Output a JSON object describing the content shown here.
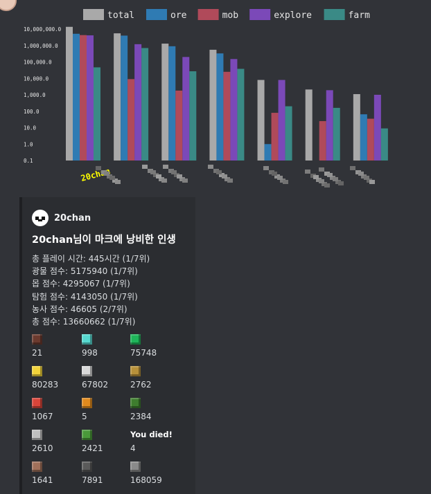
{
  "chart_data": {
    "type": "bar",
    "title": "",
    "xlabel": "",
    "ylabel": "",
    "y_scale": "log",
    "ylim": [
      0.1,
      10000000
    ],
    "ytick_labels": [
      "10,000,000.0",
      "1,000,000.0",
      "100,000.0",
      "10,000.0",
      "1,000.0",
      "100.0",
      "10.0",
      "1.0",
      "0.1"
    ],
    "categories": [
      "20chan",
      "",
      "",
      "",
      "",
      "",
      ""
    ],
    "highlight_category_color": "#ffff00",
    "series": [
      {
        "name": "total",
        "color": "#a9a9a9",
        "values": [
          13660662,
          5500000,
          1300000,
          550000,
          8000,
          2100,
          1100
        ]
      },
      {
        "name": "ore",
        "color": "#2f7bb3",
        "values": [
          5175940,
          4000000,
          900000,
          330000,
          1.0,
          0.1,
          65
        ]
      },
      {
        "name": "mob",
        "color": "#b04a5a",
        "values": [
          4295067,
          9000,
          1800,
          25000,
          80,
          25,
          35
        ]
      },
      {
        "name": "explore",
        "color": "#7b49b8",
        "values": [
          4143050,
          1200000,
          200000,
          150000,
          8000,
          1900,
          1000
        ]
      },
      {
        "name": "farm",
        "color": "#3a8a86",
        "values": [
          46605,
          700000,
          27000,
          38000,
          200,
          160,
          9
        ]
      }
    ],
    "legend_position": "top"
  },
  "embed": {
    "author": "20chan",
    "title": "20chan님이 마크에 낭비한 인생",
    "description_lines": [
      "총 플레이 시간: 445시간 (1/7위)",
      "광물 점수: 5175940 (1/7위)",
      "몹 점수: 4295067 (1/7위)",
      "탐험 점수: 4143050 (1/7위)",
      "농사 점수: 46605 (2/7위)",
      "총 점수: 13660662 (1/7위)"
    ],
    "fields": [
      {
        "icon": "netherite-block-icon",
        "color": "#6b3a2e",
        "label": "",
        "value": "21"
      },
      {
        "icon": "diamond-icon",
        "color": "#56d8cf",
        "label": "",
        "value": "998"
      },
      {
        "icon": "emerald-icon",
        "color": "#1fb65a",
        "label": "",
        "value": "75748"
      },
      {
        "icon": "gold-ingot-icon",
        "color": "#f2d33a",
        "label": "",
        "value": "80283"
      },
      {
        "icon": "iron-ingot-icon",
        "color": "#d8d8d8",
        "label": "",
        "value": "67802"
      },
      {
        "icon": "wheat-icon",
        "color": "#b8913a",
        "label": "",
        "value": "2762"
      },
      {
        "icon": "watermelon-icon",
        "color": "#d9453a",
        "label": "",
        "value": "1067"
      },
      {
        "icon": "pumpkin-icon",
        "color": "#e08a1e",
        "label": "",
        "value": "5"
      },
      {
        "icon": "creeper-head-icon",
        "color": "#3e7d2e",
        "label": "",
        "value": "2384"
      },
      {
        "icon": "skeleton-skull-icon",
        "color": "#bfbfbf",
        "label": "",
        "value": "2610"
      },
      {
        "icon": "zombie-head-icon",
        "color": "#4a9a3a",
        "label": "",
        "value": "2421"
      },
      {
        "icon": "",
        "color": "",
        "label": "You died!",
        "value": "4"
      },
      {
        "icon": "villager-icon",
        "color": "#a0705a",
        "label": "",
        "value": "1641"
      },
      {
        "icon": "anvil-icon",
        "color": "#5a5a5a",
        "label": "",
        "value": "7891"
      },
      {
        "icon": "stone-icon",
        "color": "#8a8a8a",
        "label": "",
        "value": "168059"
      }
    ]
  }
}
